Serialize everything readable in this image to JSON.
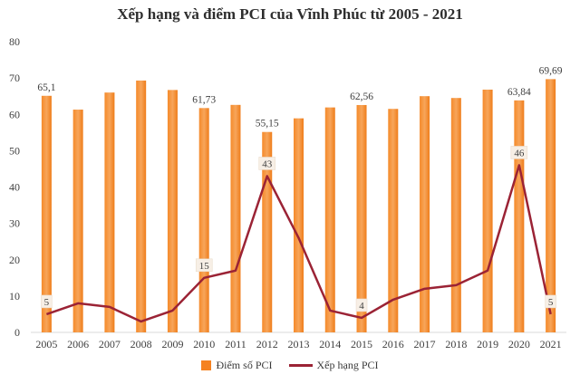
{
  "chart_data": {
    "type": "bar",
    "title": "Xếp hạng và điểm PCI của Vĩnh Phúc từ 2005 - 2021",
    "categories": [
      "2005",
      "2006",
      "2007",
      "2008",
      "2009",
      "2010",
      "2011",
      "2012",
      "2013",
      "2014",
      "2015",
      "2016",
      "2017",
      "2018",
      "2019",
      "2020",
      "2021"
    ],
    "ylim": [
      0,
      80
    ],
    "yticks": [
      "0",
      "10",
      "20",
      "30",
      "40",
      "50",
      "60",
      "70",
      "80"
    ],
    "series": [
      {
        "name": "Điểm số PCI",
        "type": "bar",
        "color": "#f58220",
        "values": [
          65.1,
          61.3,
          66.0,
          69.3,
          66.7,
          61.73,
          62.6,
          55.15,
          58.9,
          61.9,
          62.56,
          61.5,
          65.0,
          64.5,
          66.8,
          63.84,
          69.69
        ],
        "labels": [
          "65,1",
          null,
          null,
          null,
          null,
          "61,73",
          null,
          "55,15",
          null,
          null,
          "62,56",
          null,
          null,
          null,
          null,
          "63,84",
          "69,69"
        ]
      },
      {
        "name": "Xếp hạng PCI",
        "type": "line",
        "color": "#9b2335",
        "values": [
          5,
          8,
          7,
          3,
          6,
          15,
          17,
          43,
          26,
          6,
          4,
          9,
          12,
          13,
          17,
          46,
          5
        ],
        "labels": [
          "5",
          null,
          null,
          null,
          null,
          "15",
          null,
          "43",
          null,
          null,
          "4",
          null,
          null,
          null,
          null,
          "46",
          "5"
        ]
      }
    ],
    "grid": false,
    "legend_position": "bottom"
  }
}
